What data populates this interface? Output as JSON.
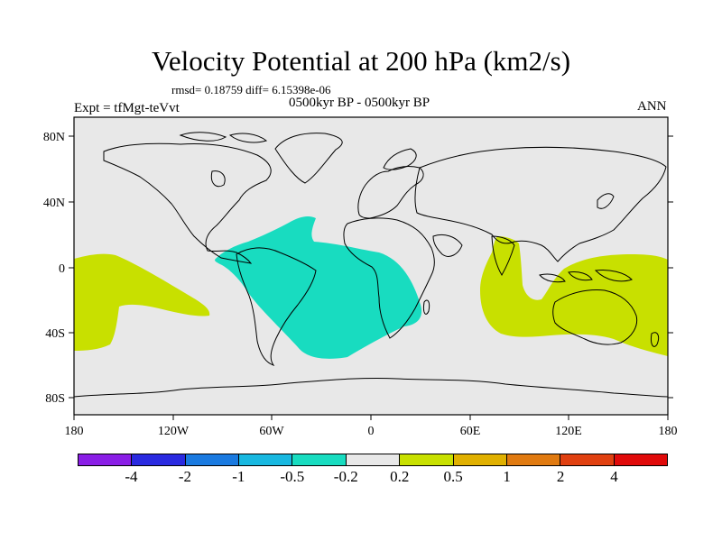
{
  "title": "Velocity Potential at 200 hPa (km2/s)",
  "stats": "rmsd= 0.18759 diff= 6.15398e-06",
  "experiment": "Expt = tfMgt-teVvt",
  "period": "0500kyr BP - 0500kyr BP",
  "season": "ANN",
  "lat_labels": [
    "80N",
    "40N",
    "0",
    "40S",
    "80S"
  ],
  "lon_labels": [
    "180",
    "120W",
    "60W",
    "0",
    "60E",
    "120E",
    "180"
  ],
  "legend": {
    "labels": [
      "-4",
      "-2",
      "-1",
      "-0.5",
      "-0.2",
      "0.2",
      "0.5",
      "1",
      "2",
      "4"
    ],
    "colors": [
      "#8a1ee6",
      "#2a2ae0",
      "#1a7ae0",
      "#18b8e0",
      "#18dcc0",
      "#e8e8e8",
      "#c8e000",
      "#e0b000",
      "#e07a10",
      "#e04010",
      "#e00a0a"
    ]
  },
  "colors": {
    "background": "#e8e8e8",
    "negative_region": "#18dcc0",
    "positive_region": "#c8e000"
  }
}
